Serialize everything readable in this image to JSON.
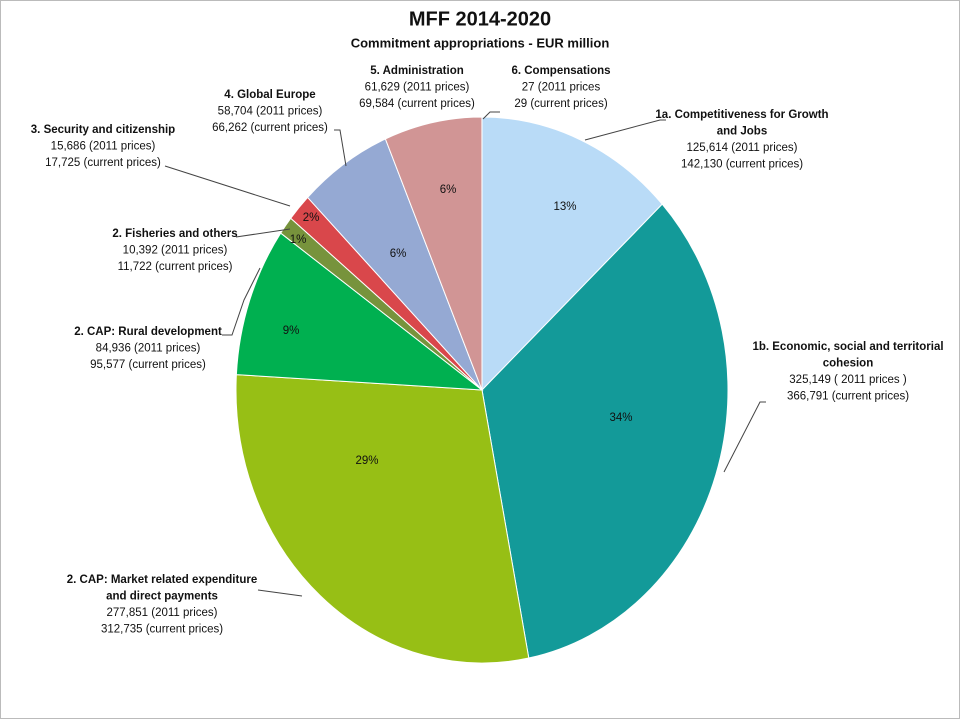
{
  "chart_data": {
    "type": "pie",
    "title": "MFF 2014-2020",
    "subtitle": "Commitment appropriations - EUR million",
    "categories": [
      "1a. Competitiveness for Growth and Jobs",
      "1b. Economic, social and territorial cohesion",
      "2. CAP: Market related expenditure and direct payments",
      "2. CAP: Rural development",
      "2. Fisheries and others",
      "3. Security and citizenship",
      "4. Global Europe",
      "5. Administration",
      "6. Compensations"
    ],
    "values": [
      125614,
      325149,
      277851,
      84936,
      10392,
      15686,
      58704,
      61629,
      27
    ],
    "value_labels": [
      "125,614 (2011 prices)",
      "325,149 ( 2011 prices )",
      "277,851 (2011 prices)",
      "84,936 (2011 prices)",
      "10,392 (2011 prices)",
      "15,686 (2011 prices)",
      "58,704 (2011 prices)",
      "61,629 (2011 prices)",
      "27 (2011 prices"
    ],
    "current_price_labels": [
      "142,130  (current prices)",
      "366,791 (current prices)",
      "312,735 (current prices)",
      "95,577 (current prices)",
      "11,722 (current prices)",
      "17,725  (current prices)",
      "66,262  (current prices)",
      "69,584  (current prices)",
      "29 (current prices)"
    ],
    "percent_labels": [
      "13%",
      "34%",
      "29%",
      "9%",
      "1%",
      "2%",
      "6%",
      "6%",
      null
    ],
    "colors": [
      "#b9dbf7",
      "#139a99",
      "#97bf15",
      "#00b050",
      "#77933c",
      "#d9474b",
      "#95a9d3",
      "#d19595",
      "#8064a2"
    ]
  }
}
